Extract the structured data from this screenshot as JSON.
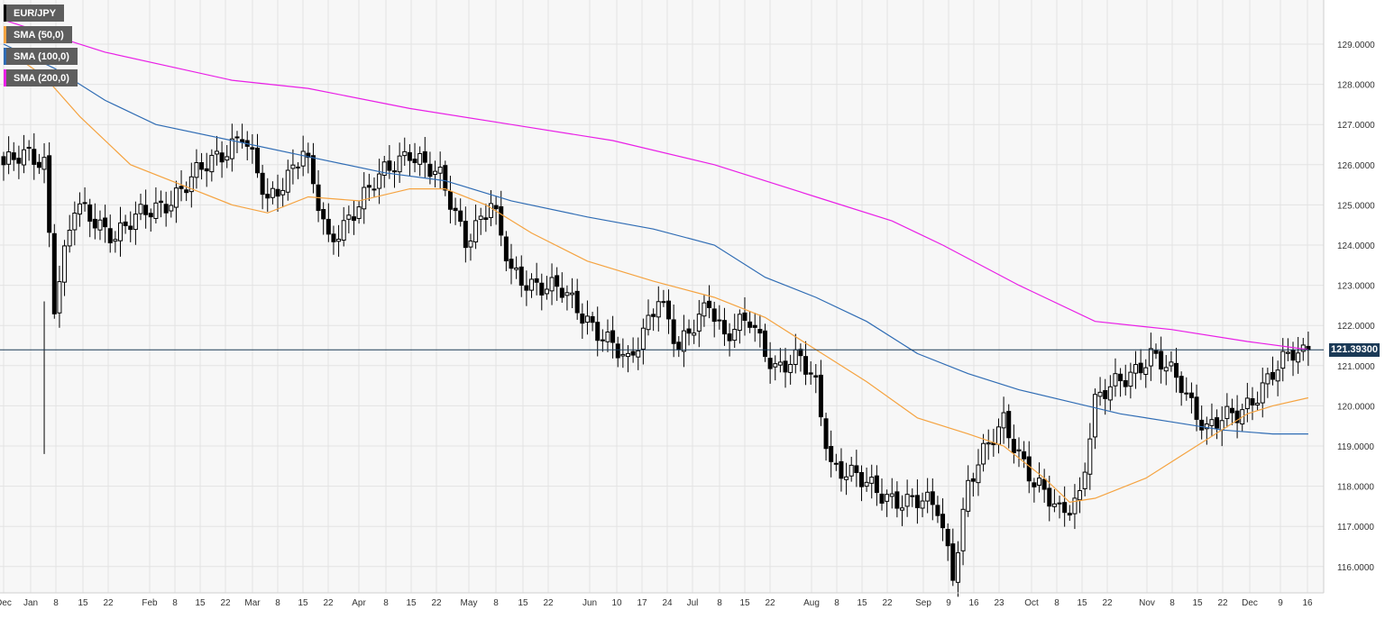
{
  "chart_data": {
    "type": "candlestick",
    "symbol": "EUR/JPY",
    "timeframe": "daily",
    "last_price": "121.39300",
    "ylim": [
      115.5,
      130.0
    ],
    "y_ticks": [
      "116.0000",
      "117.0000",
      "118.0000",
      "119.0000",
      "120.0000",
      "121.0000",
      "122.0000",
      "123.0000",
      "124.0000",
      "125.0000",
      "126.0000",
      "127.0000",
      "128.0000",
      "129.0000"
    ],
    "x_ticks": [
      "Dec",
      "Jan",
      "8",
      "15",
      "22",
      "Feb",
      "8",
      "15",
      "22",
      "Mar",
      "8",
      "15",
      "22",
      "Apr",
      "8",
      "15",
      "22",
      "May",
      "8",
      "15",
      "22",
      "Jun",
      "10",
      "17",
      "24",
      "Jul",
      "8",
      "15",
      "22",
      "Aug",
      "8",
      "15",
      "22",
      "Sep",
      "9",
      "16",
      "23",
      "Oct",
      "8",
      "15",
      "22",
      "Nov",
      "8",
      "15",
      "22",
      "Dec",
      "9",
      "16"
    ],
    "grid": true,
    "legend_position": "top-left",
    "legend": [
      {
        "label": "EUR/JPY",
        "color": "#000000"
      },
      {
        "label": "SMA (50,0)",
        "color": "#f5a340"
      },
      {
        "label": "SMA (100,0)",
        "color": "#2f6cb4"
      },
      {
        "label": "SMA (200,0)",
        "color": "#e91ee6"
      }
    ],
    "close_anchors": [
      [
        0,
        126.0
      ],
      [
        5,
        126.2
      ],
      [
        8,
        126.1
      ],
      [
        10,
        122.6
      ],
      [
        14,
        124.9
      ],
      [
        22,
        124.3
      ],
      [
        31,
        125.0
      ],
      [
        37,
        125.6
      ],
      [
        47,
        126.8
      ],
      [
        52,
        125.0
      ],
      [
        59,
        126.4
      ],
      [
        64,
        124.0
      ],
      [
        70,
        125.1
      ],
      [
        80,
        126.4
      ],
      [
        86,
        125.6
      ],
      [
        91,
        124.2
      ],
      [
        96,
        125.0
      ],
      [
        100,
        123.3
      ],
      [
        110,
        122.8
      ],
      [
        115,
        122.2
      ],
      [
        123,
        121.0
      ],
      [
        129,
        122.8
      ],
      [
        133,
        121.3
      ],
      [
        139,
        122.7
      ],
      [
        142,
        121.7
      ],
      [
        147,
        122.1
      ],
      [
        152,
        121.0
      ],
      [
        157,
        121.1
      ],
      [
        160,
        120.5
      ],
      [
        163,
        118.6
      ],
      [
        170,
        118.0
      ],
      [
        178,
        117.6
      ],
      [
        184,
        117.5
      ],
      [
        187,
        115.9
      ],
      [
        190,
        118.0
      ],
      [
        197,
        119.7
      ],
      [
        203,
        118.0
      ],
      [
        208,
        117.4
      ],
      [
        212,
        117.8
      ],
      [
        215,
        120.0
      ],
      [
        220,
        120.7
      ],
      [
        226,
        121.2
      ],
      [
        232,
        120.6
      ],
      [
        237,
        119.4
      ],
      [
        243,
        119.8
      ],
      [
        248,
        120.5
      ],
      [
        254,
        121.3
      ],
      [
        257,
        121.39
      ]
    ],
    "sma_50": [
      [
        0,
        128.9
      ],
      [
        8,
        128.2
      ],
      [
        15,
        127.2
      ],
      [
        25,
        126.0
      ],
      [
        35,
        125.5
      ],
      [
        45,
        125.0
      ],
      [
        52,
        124.8
      ],
      [
        60,
        125.2
      ],
      [
        70,
        125.1
      ],
      [
        80,
        125.4
      ],
      [
        87,
        125.4
      ],
      [
        95,
        125.0
      ],
      [
        104,
        124.3
      ],
      [
        115,
        123.6
      ],
      [
        128,
        123.1
      ],
      [
        140,
        122.7
      ],
      [
        150,
        122.2
      ],
      [
        160,
        121.4
      ],
      [
        170,
        120.6
      ],
      [
        180,
        119.7
      ],
      [
        190,
        119.3
      ],
      [
        197,
        119.0
      ],
      [
        205,
        118.2
      ],
      [
        210,
        117.6
      ],
      [
        215,
        117.7
      ],
      [
        225,
        118.2
      ],
      [
        235,
        119.0
      ],
      [
        245,
        119.8
      ],
      [
        250,
        120.0
      ],
      [
        257,
        120.2
      ]
    ],
    "sma_100": [
      [
        0,
        129.0
      ],
      [
        10,
        128.4
      ],
      [
        20,
        127.6
      ],
      [
        30,
        127.0
      ],
      [
        45,
        126.6
      ],
      [
        60,
        126.2
      ],
      [
        75,
        125.8
      ],
      [
        87,
        125.6
      ],
      [
        100,
        125.1
      ],
      [
        115,
        124.7
      ],
      [
        128,
        124.4
      ],
      [
        140,
        124.0
      ],
      [
        150,
        123.2
      ],
      [
        160,
        122.7
      ],
      [
        170,
        122.1
      ],
      [
        180,
        121.3
      ],
      [
        190,
        120.8
      ],
      [
        200,
        120.4
      ],
      [
        210,
        120.1
      ],
      [
        220,
        119.8
      ],
      [
        230,
        119.6
      ],
      [
        240,
        119.4
      ],
      [
        250,
        119.3
      ],
      [
        257,
        119.3
      ]
    ],
    "sma_200": [
      [
        0,
        129.6
      ],
      [
        20,
        128.8
      ],
      [
        45,
        128.1
      ],
      [
        60,
        127.9
      ],
      [
        80,
        127.4
      ],
      [
        100,
        127.0
      ],
      [
        120,
        126.6
      ],
      [
        140,
        126.0
      ],
      [
        160,
        125.2
      ],
      [
        175,
        124.6
      ],
      [
        185,
        124.0
      ],
      [
        200,
        123.0
      ],
      [
        215,
        122.1
      ],
      [
        230,
        121.9
      ],
      [
        245,
        121.6
      ],
      [
        257,
        121.4
      ]
    ],
    "sma_colors": {
      "sma_50": "#f5a340",
      "sma_100": "#2f6cb4",
      "sma_200": "#e91ee6"
    }
  }
}
